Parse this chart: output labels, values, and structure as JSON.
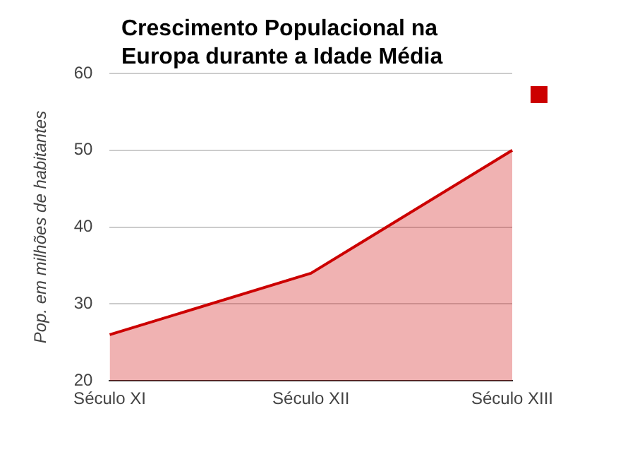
{
  "chart_data": {
    "type": "area",
    "title": "Crescimento Populacional na Europa durante a Idade Média",
    "ylabel": "Pop. em milhões de habitantes",
    "categories": [
      "Século XI",
      "Século XII",
      "Século XIII"
    ],
    "series": [
      {
        "color": "#cc0000",
        "values": [
          26,
          34,
          50
        ]
      }
    ],
    "ylim": [
      20,
      60
    ],
    "yticks": [
      20,
      30,
      40,
      50,
      60
    ],
    "grid": "y",
    "marker": "none"
  }
}
